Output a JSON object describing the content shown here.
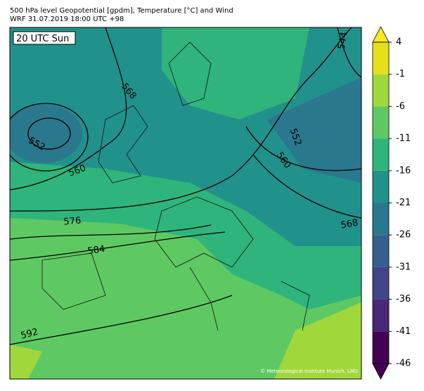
{
  "header": {
    "title": "500 hPa level Geopotential [gpdm], Temperature [°C] and Wind",
    "subtitle": "WRF 31.07.2019 18:00 UTC +98"
  },
  "map": {
    "time_label": "20 UTC Sun",
    "credit": "© Meteorological Institute Munich, LMU",
    "contour_labels": [
      552,
      560,
      568,
      576,
      584,
      592,
      544,
      552,
      560,
      568
    ]
  },
  "colorbar": {
    "ticks": [
      4,
      -1,
      -6,
      -11,
      -16,
      -21,
      -26,
      -31,
      -36,
      -41,
      -46
    ],
    "colors": [
      "#e6e01a",
      "#a0d83c",
      "#5ec962",
      "#2fb47c",
      "#21918c",
      "#2a788e",
      "#355f8d",
      "#414487",
      "#482878",
      "#440154"
    ],
    "over": "#fde725",
    "under": "#440154"
  }
}
